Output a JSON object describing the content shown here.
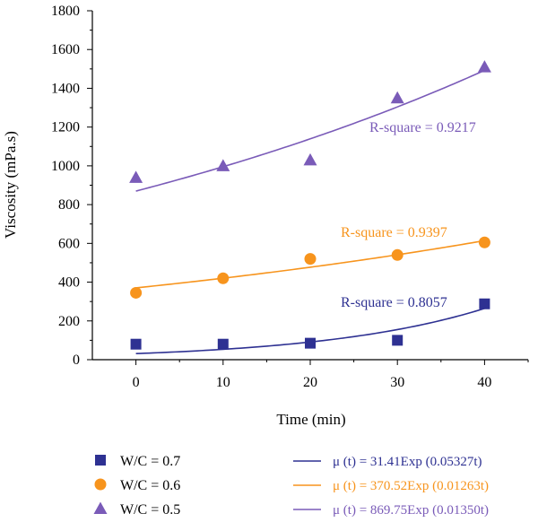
{
  "chart_data": {
    "type": "scatter",
    "xlabel": "Time (min)",
    "ylabel": "Viscosity (mPa.s)",
    "xlim": [
      -5,
      45
    ],
    "ylim": [
      0,
      1800
    ],
    "x_ticks": [
      0,
      10,
      20,
      30,
      40
    ],
    "y_ticks": [
      0,
      200,
      400,
      600,
      800,
      1000,
      1200,
      1400,
      1600,
      1800
    ],
    "x_tick_labels": [
      "0",
      "10",
      "20",
      "30",
      "40"
    ],
    "y_tick_labels": [
      "0",
      "200",
      "400",
      "600",
      "800",
      "1000",
      "1200",
      "1400",
      "1600",
      "1800"
    ],
    "grid": false,
    "series": [
      {
        "name": "W/C = 0.7",
        "marker": "square",
        "color": "#2e3192",
        "x": [
          0,
          10,
          20,
          30,
          40
        ],
        "y": [
          80,
          80,
          85,
          100,
          288
        ],
        "fit": {
          "a": 31.41,
          "b": 0.05327
        },
        "fit_label": "μ (t) = 31.41Exp (0.05327t)",
        "r_square": "R-square = 0.8057"
      },
      {
        "name": "W/C = 0.6",
        "marker": "circle",
        "color": "#f7941d",
        "x": [
          0,
          10,
          20,
          30,
          40
        ],
        "y": [
          345,
          420,
          520,
          540,
          605
        ],
        "fit": {
          "a": 370.52,
          "b": 0.01263
        },
        "fit_label": "μ (t) = 370.52Exp (0.01263t)",
        "r_square": "R-square = 0.9397"
      },
      {
        "name": "W/C = 0.5",
        "marker": "triangle",
        "color": "#7a5bb8",
        "x": [
          0,
          10,
          20,
          30,
          40
        ],
        "y": [
          940,
          1000,
          1030,
          1350,
          1510
        ],
        "fit": {
          "a": 869.75,
          "b": 0.0135
        },
        "fit_label": "μ (t) = 869.75Exp (0.01350t)",
        "r_square": "R-square = 0.9217"
      }
    ]
  }
}
